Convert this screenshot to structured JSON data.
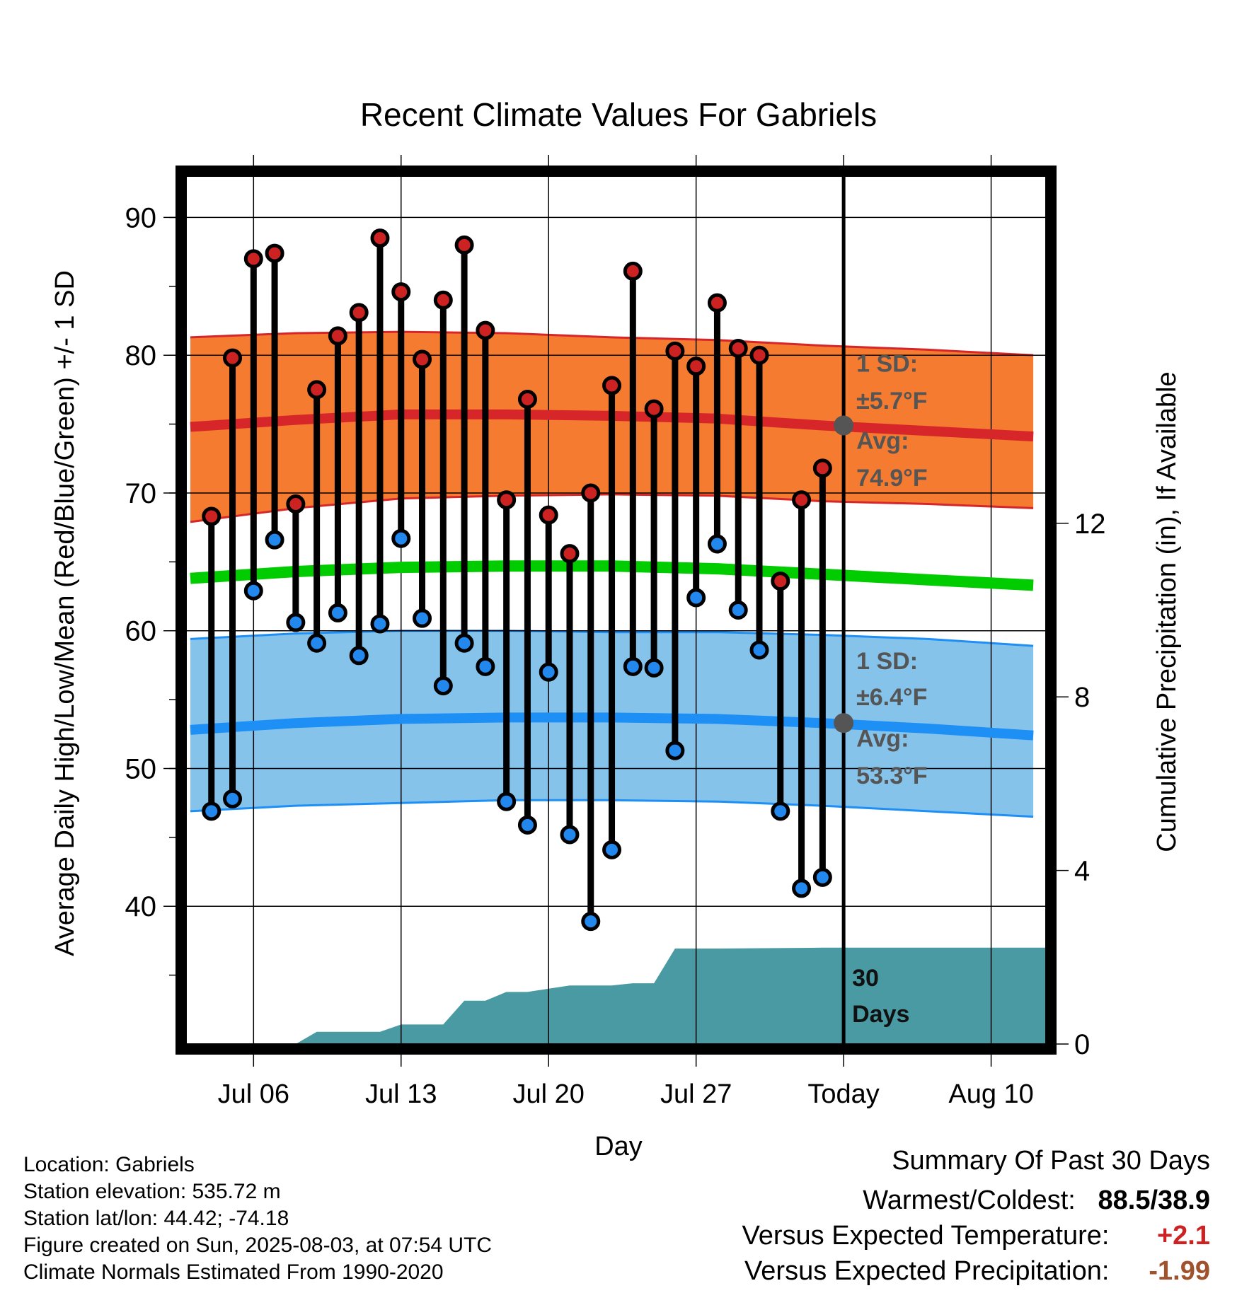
{
  "chart_data": {
    "type": "line",
    "title": "Recent Climate Values For Gabriels",
    "xlabel": "Day",
    "ylabel": "Average Daily High/Low/Mean (Red/Blue/Green) +/- 1 SD",
    "y2label": "Cumulative Precipitation (in), If Available",
    "ylim": [
      30,
      93
    ],
    "y2lim": [
      0,
      20
    ],
    "y_ticks": [
      40,
      50,
      60,
      70,
      80,
      90
    ],
    "y2_ticks": [
      0,
      4,
      8,
      12
    ],
    "x_tick_labels": [
      "Jul 06",
      "Jul 13",
      "Jul 20",
      "Jul 27",
      "Today",
      "Aug 10"
    ],
    "x_tick_days": [
      6,
      13,
      20,
      27,
      34,
      41
    ],
    "xlim": [
      2.8,
      43.6
    ],
    "today_day": 34,
    "grid": true,
    "days": [
      4,
      5,
      6,
      7,
      8,
      9,
      10,
      11,
      12,
      13,
      14,
      15,
      16,
      17,
      18,
      19,
      20,
      21,
      22,
      23,
      24,
      25,
      26,
      27,
      28,
      29,
      30,
      31,
      32,
      33
    ],
    "highs": [
      68.3,
      79.8,
      87.0,
      87.4,
      69.2,
      77.5,
      81.4,
      83.1,
      88.5,
      84.6,
      79.7,
      84.0,
      88.0,
      81.8,
      69.5,
      76.8,
      68.4,
      65.6,
      70.0,
      77.8,
      86.1,
      76.1,
      80.3,
      79.2,
      83.8,
      80.5,
      80.0,
      63.6,
      69.5,
      71.8
    ],
    "lows": [
      46.9,
      47.8,
      62.9,
      66.6,
      60.6,
      59.1,
      61.3,
      58.2,
      60.5,
      66.7,
      60.9,
      56.0,
      59.1,
      57.4,
      47.6,
      45.9,
      57.0,
      45.2,
      38.9,
      44.1,
      57.4,
      57.3,
      51.3,
      62.4,
      66.3,
      61.5,
      58.6,
      46.9,
      41.3,
      42.1
    ],
    "normal_high": {
      "x": [
        3,
        8,
        13,
        18,
        23,
        28,
        33,
        38,
        43
      ],
      "avg": [
        74.8,
        75.3,
        75.7,
        75.7,
        75.6,
        75.4,
        74.9,
        74.5,
        74.1
      ],
      "upper": [
        81.3,
        81.6,
        81.7,
        81.6,
        81.3,
        81.1,
        80.7,
        80.4,
        80.0
      ],
      "lower": [
        67.9,
        68.9,
        69.6,
        69.8,
        69.9,
        69.8,
        69.4,
        69.2,
        68.9
      ]
    },
    "normal_mean": {
      "x": [
        3,
        8,
        13,
        18,
        23,
        28,
        33,
        38,
        43
      ],
      "values": [
        63.8,
        64.3,
        64.6,
        64.7,
        64.7,
        64.5,
        64.1,
        63.7,
        63.3
      ]
    },
    "normal_low": {
      "x": [
        3,
        8,
        13,
        18,
        23,
        28,
        33,
        38,
        43
      ],
      "avg": [
        52.8,
        53.3,
        53.6,
        53.7,
        53.7,
        53.6,
        53.3,
        52.9,
        52.4
      ],
      "upper": [
        59.4,
        59.8,
        60.0,
        60.0,
        59.9,
        59.9,
        59.7,
        59.4,
        58.9
      ],
      "lower": [
        46.9,
        47.3,
        47.5,
        47.7,
        47.7,
        47.6,
        47.3,
        46.9,
        46.5
      ]
    },
    "precip": {
      "x": [
        3,
        8,
        9,
        12,
        13,
        15,
        16,
        17,
        18,
        19,
        21,
        23,
        24,
        25,
        26,
        27,
        28,
        33,
        43.6
      ],
      "values": [
        0,
        0,
        0.28,
        0.28,
        0.45,
        0.45,
        1.0,
        1.0,
        1.2,
        1.2,
        1.35,
        1.35,
        1.4,
        1.4,
        2.2,
        2.2,
        2.2,
        2.22,
        2.22
      ]
    },
    "annotations": {
      "high_sd": "1 SD:",
      "high_sd_value": "±5.7°F",
      "high_avg": "Avg:",
      "high_avg_value": "74.9°F",
      "high_avg_point": 74.9,
      "low_sd": "1 SD:",
      "low_sd_value": "±6.4°F",
      "low_avg": "Avg:",
      "low_avg_value": "53.3°F",
      "low_avg_point": 53.3,
      "days_num": "30",
      "days_word": "Days"
    },
    "colors": {
      "high_band": "#f47b30",
      "high_line": "#d7262a",
      "low_band": "#86c3ea",
      "low_line": "#1e8ff5",
      "mean_line": "#00cc00",
      "precip": "#4a9aa3",
      "high_dot": "#cc2222",
      "low_dot": "#2288ee",
      "annotation": "#555555"
    }
  },
  "footer": {
    "location": "Location: Gabriels",
    "elevation": "Station elevation: 535.72 m",
    "latlon": "Station lat/lon: 44.42; -74.18",
    "created": "Figure created on Sun, 2025-08-03, at 07:54 UTC",
    "normals": "Climate Normals Estimated From 1990-2020"
  },
  "summary": {
    "title": "Summary Of Past 30 Days",
    "warmest_label": "Warmest/Coldest:",
    "warmest_value": "88.5/38.9",
    "temp_label": "Versus Expected Temperature:",
    "temp_value": "+2.1",
    "temp_color": "#cc2222",
    "precip_label": "Versus Expected Precipitation:",
    "precip_value": "-1.99",
    "precip_color": "#a0522d"
  }
}
